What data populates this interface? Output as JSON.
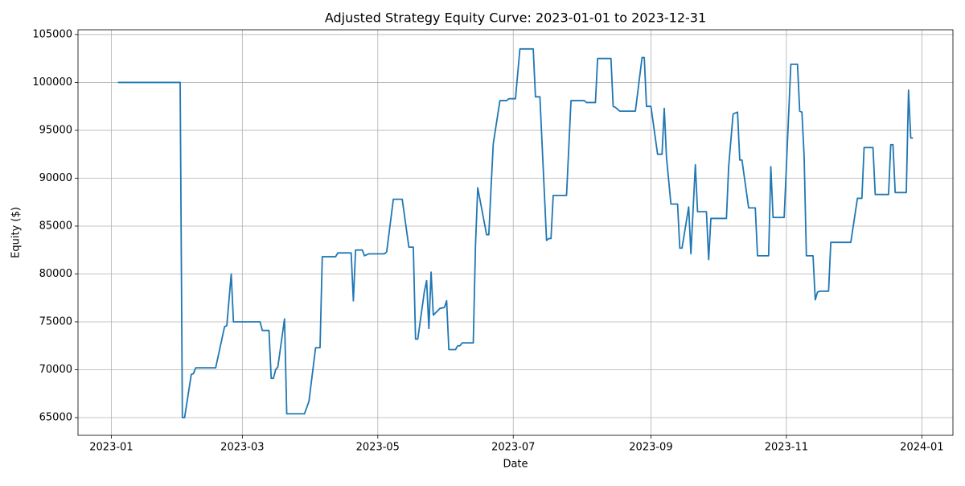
{
  "chart_data": {
    "type": "line",
    "title": "Adjusted Strategy Equity Curve: 2023-01-01 to 2023-12-31",
    "xlabel": "Date",
    "ylabel": "Equity ($)",
    "x": [
      "2023-01-04",
      "2023-02-01",
      "2023-02-02",
      "2023-02-03",
      "2023-02-06",
      "2023-02-07",
      "2023-02-08",
      "2023-02-17",
      "2023-02-21",
      "2023-02-22",
      "2023-02-24",
      "2023-02-25",
      "2023-03-09",
      "2023-03-10",
      "2023-03-13",
      "2023-03-14",
      "2023-03-15",
      "2023-03-16",
      "2023-03-17",
      "2023-03-20",
      "2023-03-21",
      "2023-03-29",
      "2023-03-31",
      "2023-04-03",
      "2023-04-05",
      "2023-04-06",
      "2023-04-12",
      "2023-04-13",
      "2023-04-19",
      "2023-04-20",
      "2023-04-21",
      "2023-04-24",
      "2023-04-25",
      "2023-04-27",
      "2023-05-04",
      "2023-05-05",
      "2023-05-08",
      "2023-05-12",
      "2023-05-15",
      "2023-05-17",
      "2023-05-18",
      "2023-05-19",
      "2023-05-22",
      "2023-05-23",
      "2023-05-24",
      "2023-05-25",
      "2023-05-26",
      "2023-05-29",
      "2023-05-31",
      "2023-06-01",
      "2023-06-02",
      "2023-06-05",
      "2023-06-06",
      "2023-06-07",
      "2023-06-08",
      "2023-06-13",
      "2023-06-14",
      "2023-06-15",
      "2023-06-19",
      "2023-06-20",
      "2023-06-21",
      "2023-06-22",
      "2023-06-25",
      "2023-06-28",
      "2023-06-29",
      "2023-07-02",
      "2023-07-04",
      "2023-07-10",
      "2023-07-11",
      "2023-07-13",
      "2023-07-16",
      "2023-07-17",
      "2023-07-18",
      "2023-07-19",
      "2023-07-25",
      "2023-07-27",
      "2023-08-02",
      "2023-08-03",
      "2023-08-07",
      "2023-08-08",
      "2023-08-14",
      "2023-08-15",
      "2023-08-16",
      "2023-08-18",
      "2023-08-25",
      "2023-08-28",
      "2023-08-29",
      "2023-08-30",
      "2023-09-01",
      "2023-09-04",
      "2023-09-06",
      "2023-09-07",
      "2023-09-08",
      "2023-09-10",
      "2023-09-13",
      "2023-09-14",
      "2023-09-15",
      "2023-09-18",
      "2023-09-19",
      "2023-09-21",
      "2023-09-22",
      "2023-09-26",
      "2023-09-27",
      "2023-09-28",
      "2023-10-05",
      "2023-10-06",
      "2023-10-08",
      "2023-10-10",
      "2023-10-11",
      "2023-10-12",
      "2023-10-15",
      "2023-10-18",
      "2023-10-19",
      "2023-10-24",
      "2023-10-25",
      "2023-10-26",
      "2023-10-31",
      "2023-11-03",
      "2023-11-06",
      "2023-11-07",
      "2023-11-08",
      "2023-11-09",
      "2023-11-10",
      "2023-11-13",
      "2023-11-14",
      "2023-11-15",
      "2023-11-16",
      "2023-11-20",
      "2023-11-21",
      "2023-11-30",
      "2023-12-03",
      "2023-12-05",
      "2023-12-06",
      "2023-12-10",
      "2023-12-11",
      "2023-12-17",
      "2023-12-18",
      "2023-12-19",
      "2023-12-20",
      "2023-12-25",
      "2023-12-26",
      "2023-12-27",
      "2023-12-28"
    ],
    "series": [
      {
        "name": "Equity",
        "color": "#1f77b4",
        "values": [
          100000,
          100000,
          65000,
          65000,
          69500,
          69600,
          70200,
          70200,
          74500,
          74600,
          80000,
          75000,
          75000,
          74100,
          74100,
          69100,
          69100,
          70000,
          70300,
          75300,
          65400,
          65400,
          66700,
          72300,
          72300,
          81800,
          81800,
          82200,
          82200,
          77200,
          82500,
          82500,
          81900,
          82100,
          82100,
          82300,
          87800,
          87800,
          82800,
          82800,
          73200,
          73200,
          78200,
          79300,
          74300,
          80200,
          75700,
          76400,
          76500,
          77200,
          72100,
          72100,
          72500,
          72500,
          72800,
          72800,
          83000,
          89000,
          84100,
          84100,
          89000,
          93600,
          98100,
          98100,
          98300,
          98300,
          103500,
          103500,
          98500,
          98500,
          83500,
          83700,
          83700,
          88200,
          88200,
          98100,
          98100,
          97900,
          97900,
          102500,
          102500,
          97500,
          97400,
          97000,
          97000,
          102600,
          102600,
          97500,
          97500,
          92500,
          92500,
          97300,
          92200,
          87300,
          87300,
          82700,
          82700,
          87000,
          82100,
          91400,
          86500,
          86500,
          81500,
          85800,
          85800,
          91200,
          96700,
          96900,
          91900,
          91900,
          86900,
          86900,
          81900,
          81900,
          91200,
          85900,
          85900,
          101900,
          101900,
          97000,
          96900,
          92200,
          81900,
          81900,
          77300,
          78100,
          78200,
          78200,
          83300,
          83300,
          87900,
          87900,
          93200,
          93200,
          88300,
          88300,
          93500,
          93500,
          88500,
          88500,
          99200,
          94200,
          94200
        ]
      }
    ],
    "xlim": [
      "2022-12-17",
      "2024-01-15"
    ],
    "xticks": [
      {
        "value": "2023-01-01",
        "label": "2023-01"
      },
      {
        "value": "2023-03-01",
        "label": "2023-03"
      },
      {
        "value": "2023-05-01",
        "label": "2023-05"
      },
      {
        "value": "2023-07-01",
        "label": "2023-07"
      },
      {
        "value": "2023-09-01",
        "label": "2023-09"
      },
      {
        "value": "2023-11-01",
        "label": "2023-11"
      },
      {
        "value": "2024-01-01",
        "label": "2024-01"
      }
    ],
    "ylim": [
      63150,
      105500
    ],
    "yticks": [
      65000,
      70000,
      75000,
      80000,
      85000,
      90000,
      95000,
      100000,
      105000
    ],
    "grid": true
  }
}
